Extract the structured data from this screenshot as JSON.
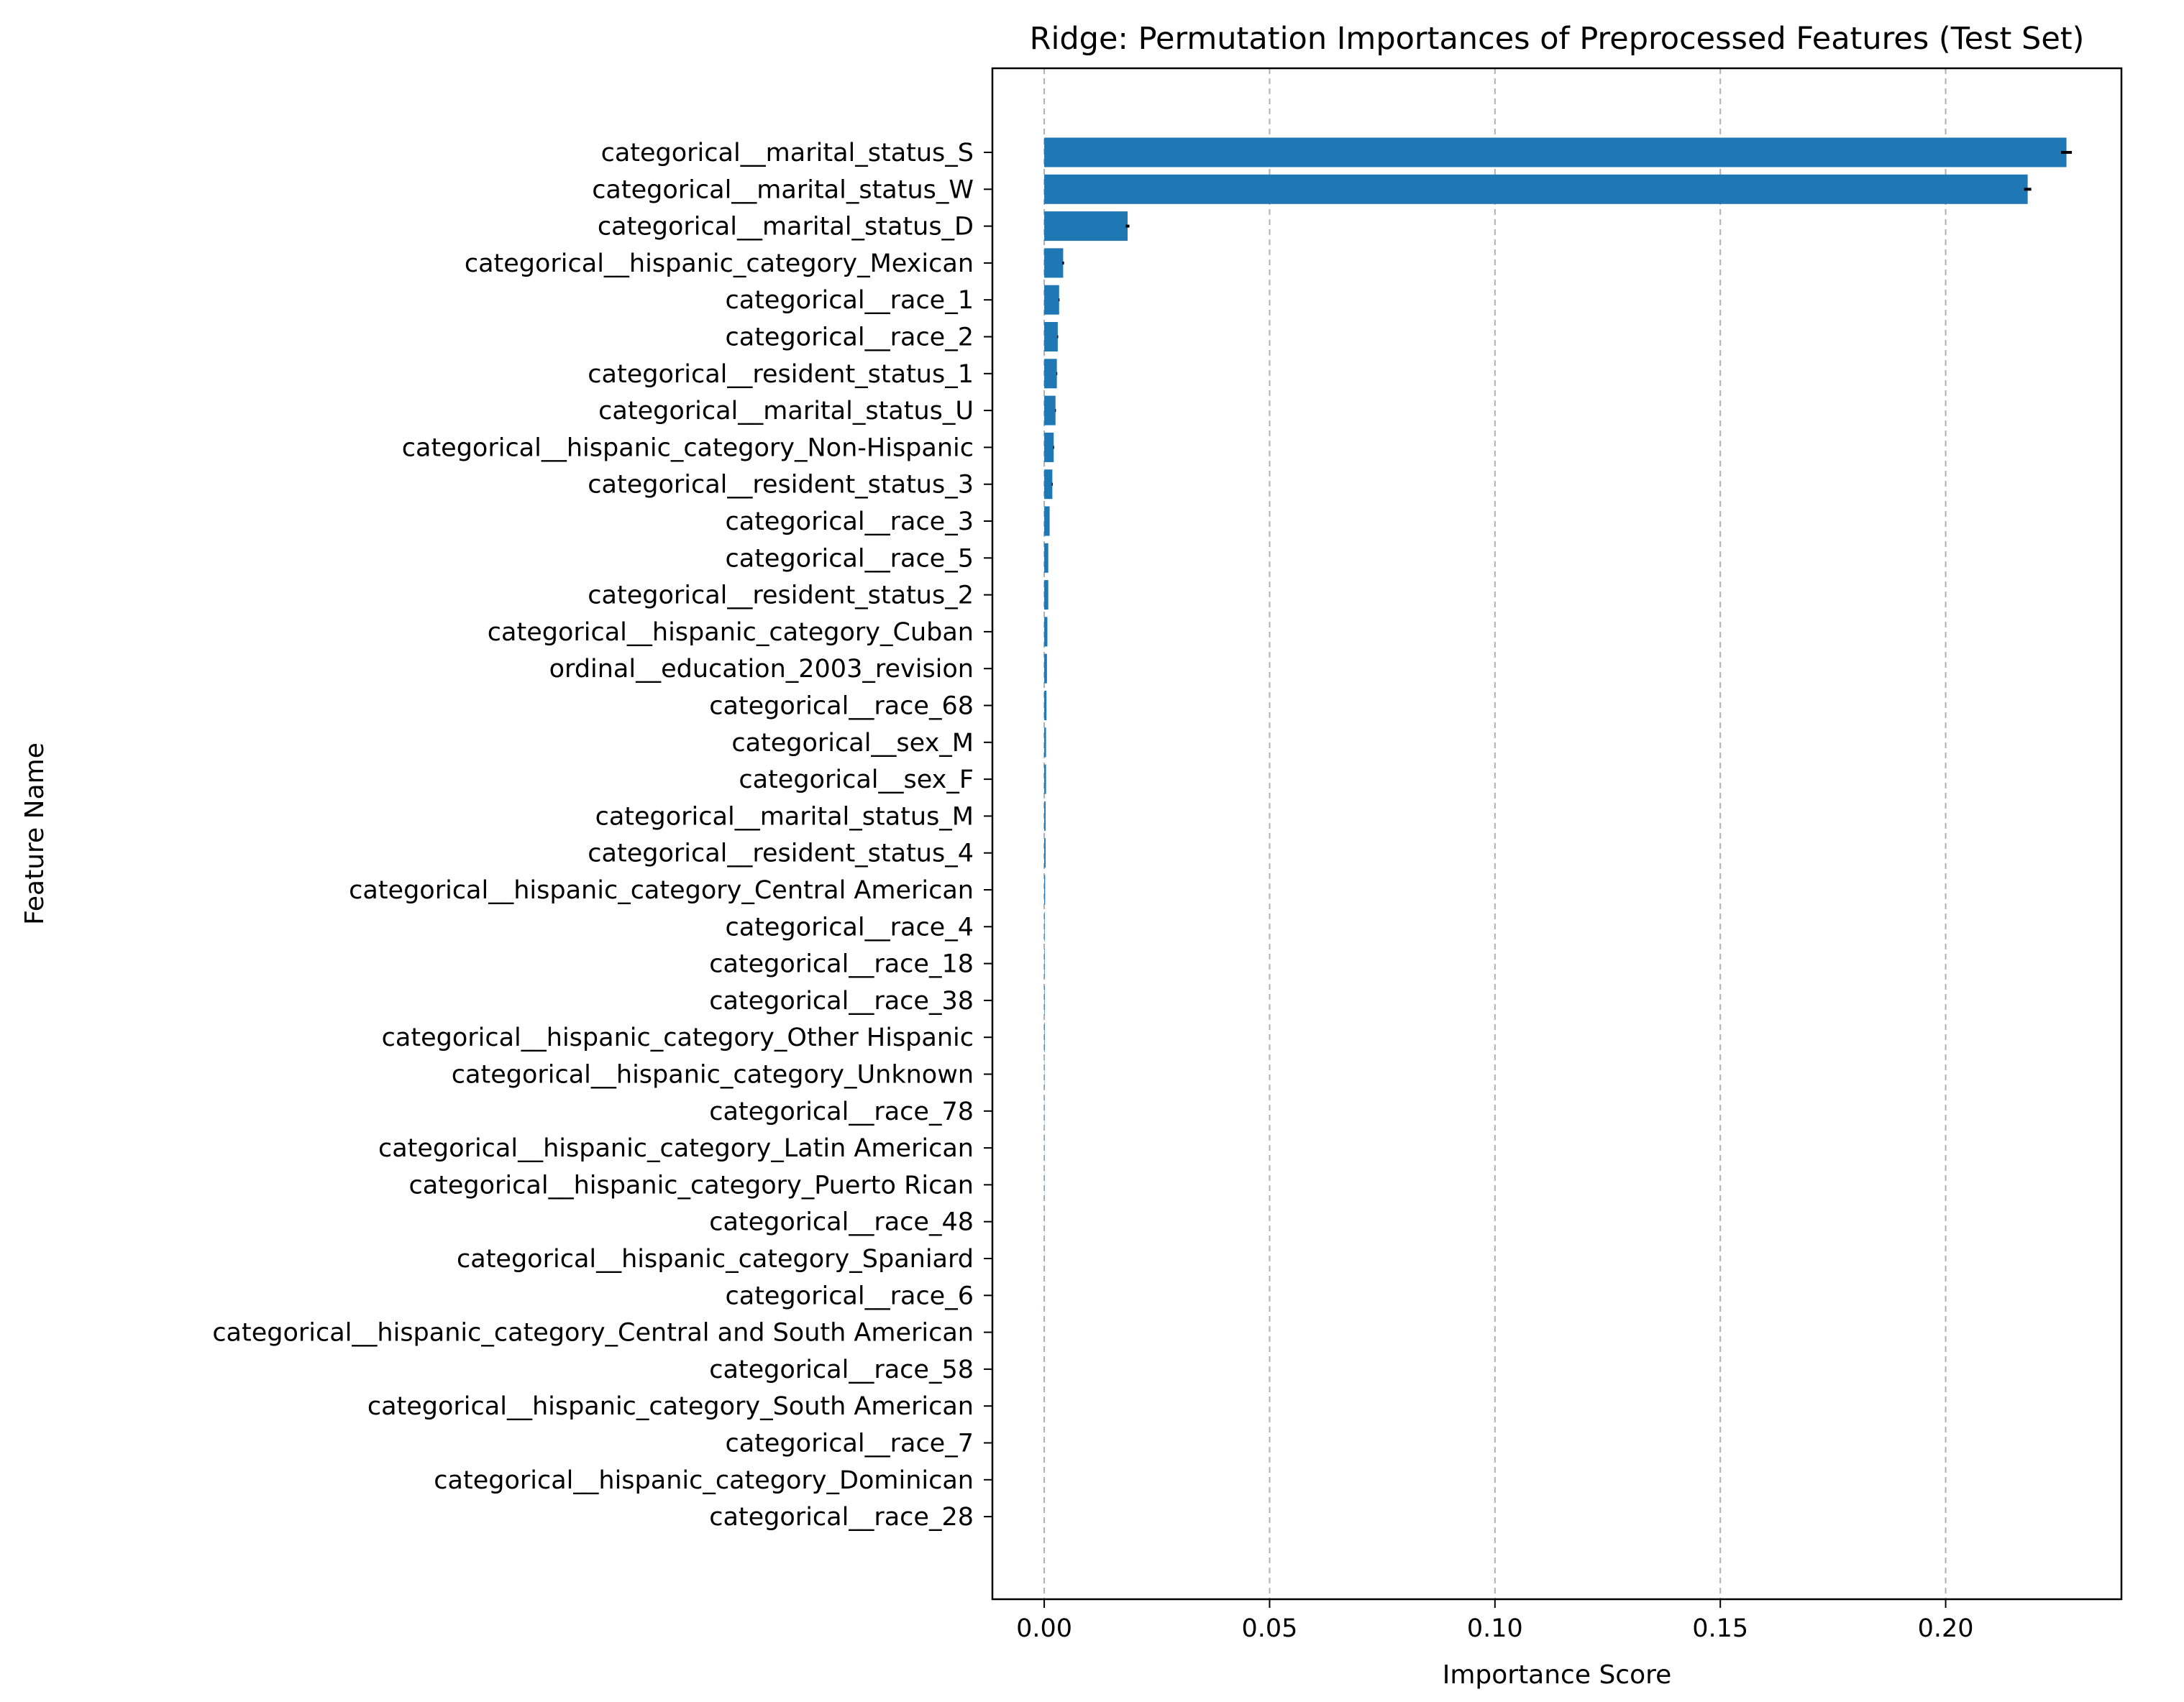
{
  "chart_data": {
    "type": "bar",
    "orientation": "horizontal",
    "title": "Ridge: Permutation Importances of Preprocessed Features (Test Set)",
    "xlabel": "Importance Score",
    "ylabel": "Feature Name",
    "xlim": [
      -0.0115,
      0.239
    ],
    "xticks": [
      0.0,
      0.05,
      0.1,
      0.15,
      0.2
    ],
    "xtick_labels": [
      "0.00",
      "0.05",
      "0.10",
      "0.15",
      "0.20"
    ],
    "grid": {
      "x": true,
      "y": false,
      "style": "dashed"
    },
    "bar_color": "#1f77b4",
    "error_color": "#000000",
    "categories": [
      "categorical__marital_status_S",
      "categorical__marital_status_W",
      "categorical__marital_status_D",
      "categorical__hispanic_category_Mexican",
      "categorical__race_1",
      "categorical__race_2",
      "categorical__resident_status_1",
      "categorical__marital_status_U",
      "categorical__hispanic_category_Non-Hispanic",
      "categorical__resident_status_3",
      "categorical__race_3",
      "categorical__race_5",
      "categorical__resident_status_2",
      "categorical__hispanic_category_Cuban",
      "ordinal__education_2003_revision",
      "categorical__race_68",
      "categorical__sex_M",
      "categorical__sex_F",
      "categorical__marital_status_M",
      "categorical__resident_status_4",
      "categorical__hispanic_category_Central American",
      "categorical__race_4",
      "categorical__race_18",
      "categorical__race_38",
      "categorical__hispanic_category_Other Hispanic",
      "categorical__hispanic_category_Unknown",
      "categorical__race_78",
      "categorical__hispanic_category_Latin American",
      "categorical__hispanic_category_Puerto Rican",
      "categorical__race_48",
      "categorical__hispanic_category_Spaniard",
      "categorical__race_6",
      "categorical__hispanic_category_Central and South American",
      "categorical__race_58",
      "categorical__hispanic_category_South American",
      "categorical__race_7",
      "categorical__hispanic_category_Dominican",
      "categorical__race_28"
    ],
    "values": [
      0.2268,
      0.2182,
      0.0185,
      0.0042,
      0.0033,
      0.003,
      0.0028,
      0.0025,
      0.0021,
      0.0018,
      0.0012,
      0.0009,
      0.0009,
      0.0007,
      0.0006,
      0.0005,
      0.0004,
      0.0004,
      0.0003,
      0.0003,
      0.0002,
      0.0001,
      0.0001,
      0.0001,
      0.0001,
      5e-05,
      4e-05,
      3e-05,
      3e-05,
      2e-05,
      2e-05,
      1e-05,
      1e-05,
      1e-05,
      1e-05,
      0.0,
      0.0,
      0.0
    ],
    "errors": [
      0.0012,
      0.0008,
      0.0004,
      0.0002,
      0.0001,
      0.0001,
      0.0001,
      0.0001,
      0.0001,
      0.0001,
      0.0,
      0.0,
      0.0,
      0.0,
      0.0,
      0.0,
      0.0,
      0.0,
      0.0,
      0.0,
      0.0,
      0.0,
      0.0,
      0.0,
      0.0,
      0.0,
      0.0,
      0.0,
      0.0,
      0.0,
      0.0,
      0.0,
      0.0,
      0.0,
      0.0,
      0.0,
      0.0,
      0.0
    ]
  }
}
